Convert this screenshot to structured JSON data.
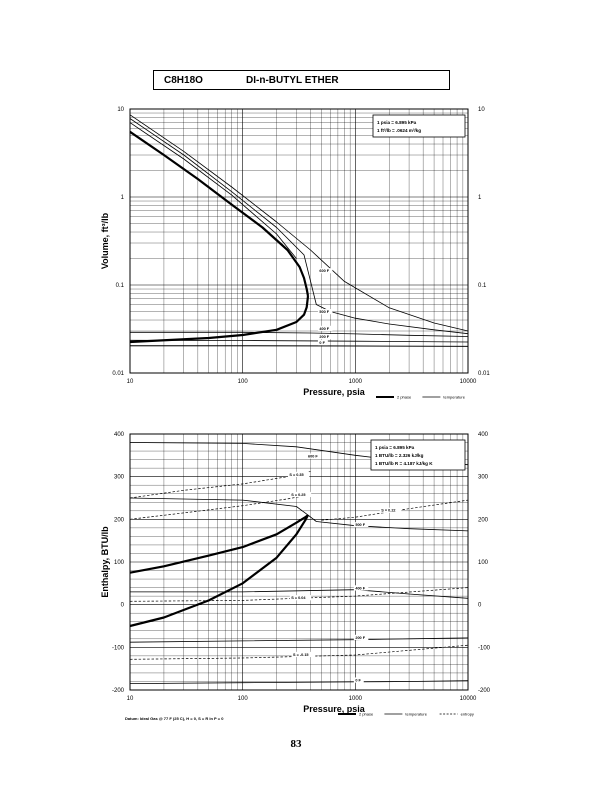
{
  "header": {
    "formula": "C8H18O",
    "name": "DI-n-BUTYL ETHER"
  },
  "page_number": "83",
  "datum_note": "Datum: Ideal Gas @ 77 F (25 C), H = 0, S = R ln P = 0",
  "chart_data": [
    {
      "type": "line",
      "id": "volume",
      "xscale": "log",
      "yscale": "log",
      "xlim": [
        10,
        10000
      ],
      "ylim": [
        0.01,
        10
      ],
      "xticks": [
        "10",
        "100",
        "1000",
        "10000"
      ],
      "yticks": [
        "0.01",
        "0.1",
        "1",
        "10"
      ],
      "xlabel": "Pressure, psia",
      "ylabel": "Volume, ft^3/lb",
      "grid": true,
      "notes": [
        "1 psia = 6.895 kPa",
        "1 ft^3/lb = .0624 m^3/kg"
      ],
      "legend": [
        {
          "label": "2 phase",
          "style": "thick"
        },
        {
          "label": "temperature",
          "style": "thin"
        }
      ],
      "series": [
        {
          "name": "2 phase (vapor)",
          "style": "thick",
          "x": [
            10,
            20,
            40,
            80,
            150,
            250,
            320,
            350,
            370,
            380
          ],
          "y": [
            5.5,
            3.0,
            1.6,
            0.82,
            0.45,
            0.25,
            0.16,
            0.12,
            0.09,
            0.075
          ]
        },
        {
          "name": "2 phase (liquid)",
          "style": "thick",
          "x": [
            10,
            50,
            100,
            200,
            300,
            350,
            370,
            380
          ],
          "y": [
            0.0225,
            0.025,
            0.027,
            0.031,
            0.038,
            0.046,
            0.056,
            0.075
          ]
        },
        {
          "name": "600 F",
          "style": "thin",
          "x": [
            10,
            30,
            80,
            200,
            400,
            800,
            2000,
            5000,
            10000
          ],
          "y": [
            8.6,
            3.3,
            1.3,
            0.52,
            0.25,
            0.11,
            0.055,
            0.037,
            0.03
          ]
        },
        {
          "name": "500 F",
          "style": "thin",
          "x": [
            10,
            30,
            80,
            200,
            350,
            450,
            600,
            1000,
            2000,
            5000,
            10000
          ],
          "y": [
            7.8,
            3.0,
            1.15,
            0.45,
            0.22,
            0.06,
            0.05,
            0.042,
            0.036,
            0.031,
            0.028
          ]
        },
        {
          "name": "2 phase (upper)",
          "style": "thin",
          "x": [
            10,
            30,
            80,
            200,
            300
          ],
          "y": [
            7.0,
            2.7,
            1.05,
            0.38,
            0.2
          ]
        },
        {
          "name": "400 F",
          "style": "thin",
          "x": [
            10,
            100,
            400,
            1000,
            3000,
            10000
          ],
          "y": [
            0.029,
            0.029,
            0.0285,
            0.0278,
            0.0268,
            0.026
          ]
        },
        {
          "name": "200 F",
          "style": "thin",
          "x": [
            10,
            100,
            1000,
            10000
          ],
          "y": [
            0.0235,
            0.0234,
            0.023,
            0.0225
          ]
        },
        {
          "name": "0 F",
          "style": "thin",
          "x": [
            10,
            100,
            1000,
            10000
          ],
          "y": [
            0.0205,
            0.0205,
            0.0203,
            0.0201
          ]
        }
      ],
      "labels": [
        {
          "text": "600 F",
          "x": 480,
          "y": 0.14
        },
        {
          "text": "500 F",
          "x": 480,
          "y": 0.048
        },
        {
          "text": "400 F",
          "x": 480,
          "y": 0.031
        },
        {
          "text": "200 F",
          "x": 480,
          "y": 0.025
        },
        {
          "text": "0 F",
          "x": 480,
          "y": 0.0213
        }
      ]
    },
    {
      "type": "line",
      "id": "enthalpy",
      "xscale": "log",
      "yscale": "linear",
      "xlim": [
        10,
        10000
      ],
      "ylim": [
        -200,
        400
      ],
      "xticks": [
        "10",
        "100",
        "1000",
        "10000"
      ],
      "yticks": [
        "-200",
        "-100",
        "0",
        "100",
        "200",
        "300",
        "400"
      ],
      "xlabel": "Pressure, psia",
      "ylabel": "Enthalpy, BTU/lb",
      "grid": true,
      "notes": [
        "1 psia = 6.895 kPa",
        "1 BTU/lb = 2.326 kJ/kg",
        "1 BTU/lb R = 4.187 kJ/kg K"
      ],
      "legend": [
        {
          "label": "2 phase",
          "style": "thick"
        },
        {
          "label": "temperature",
          "style": "thin"
        },
        {
          "label": "entropy",
          "style": "dashed"
        }
      ],
      "series": [
        {
          "name": "2 phase (vapor)",
          "style": "thick",
          "x": [
            10,
            20,
            50,
            100,
            200,
            300,
            360,
            380
          ],
          "y": [
            75,
            90,
            115,
            135,
            165,
            192,
            205,
            210
          ]
        },
        {
          "name": "2 phase (liquid)",
          "style": "thick",
          "x": [
            10,
            20,
            50,
            100,
            200,
            300,
            360,
            380
          ],
          "y": [
            -50,
            -30,
            10,
            50,
            110,
            165,
            198,
            210
          ]
        },
        {
          "name": "600 F",
          "style": "thin",
          "x": [
            10,
            100,
            300,
            1000,
            3000,
            10000
          ],
          "y": [
            380,
            378,
            370,
            350,
            335,
            328
          ]
        },
        {
          "name": "500 F",
          "style": "thin",
          "x": [
            10,
            100,
            300,
            380,
            450,
            1000,
            3000,
            10000
          ],
          "y": [
            250,
            245,
            230,
            210,
            195,
            185,
            178,
            173
          ]
        },
        {
          "name": "400 F",
          "style": "thin",
          "x": [
            10,
            100,
            1000,
            3000,
            10000
          ],
          "y": [
            30,
            30,
            35,
            25,
            15
          ]
        },
        {
          "name": "200 F",
          "style": "thin",
          "x": [
            10,
            100,
            1000,
            3000,
            10000
          ],
          "y": [
            -88,
            -85,
            -82,
            -80,
            -78
          ]
        },
        {
          "name": "0 F",
          "style": "thin",
          "x": [
            10,
            100,
            1000,
            3000,
            10000
          ],
          "y": [
            -185,
            -183,
            -181,
            -180,
            -178
          ]
        },
        {
          "name": "S = 0.35",
          "style": "dashed",
          "x": [
            10,
            30,
            100,
            250,
            400
          ],
          "y": [
            250,
            268,
            283,
            300,
            312
          ]
        },
        {
          "name": "S = 0.25",
          "style": "dashed",
          "x": [
            10,
            30,
            100,
            250,
            350
          ],
          "y": [
            200,
            215,
            232,
            248,
            255
          ]
        },
        {
          "name": "S = 0.22",
          "style": "dashed",
          "x": [
            500,
            1000,
            3000,
            10000
          ],
          "y": [
            198,
            205,
            225,
            245
          ]
        },
        {
          "name": "S = 0.04",
          "style": "dashed",
          "x": [
            10,
            100,
            1000,
            10000
          ],
          "y": [
            8,
            10,
            20,
            40
          ]
        },
        {
          "name": "S = -0.15",
          "style": "dashed",
          "x": [
            10,
            100,
            1000,
            10000
          ],
          "y": [
            -128,
            -125,
            -118,
            -95
          ]
        }
      ],
      "labels": [
        {
          "text": "600 F",
          "x": 380,
          "y": 345
        },
        {
          "text": "S = 0.35",
          "x": 260,
          "y": 302
        },
        {
          "text": "S = 0.25",
          "x": 270,
          "y": 255
        },
        {
          "text": "S = 0.22",
          "x": 1700,
          "y": 218
        },
        {
          "text": "500 F",
          "x": 1000,
          "y": 184
        },
        {
          "text": "400 F",
          "x": 1000,
          "y": 36
        },
        {
          "text": "S = 0.04",
          "x": 270,
          "y": 13
        },
        {
          "text": "200 F",
          "x": 1000,
          "y": -80
        },
        {
          "text": "S = -0.15",
          "x": 280,
          "y": -120
        },
        {
          "text": "0 F",
          "x": 1000,
          "y": -180
        }
      ]
    }
  ]
}
